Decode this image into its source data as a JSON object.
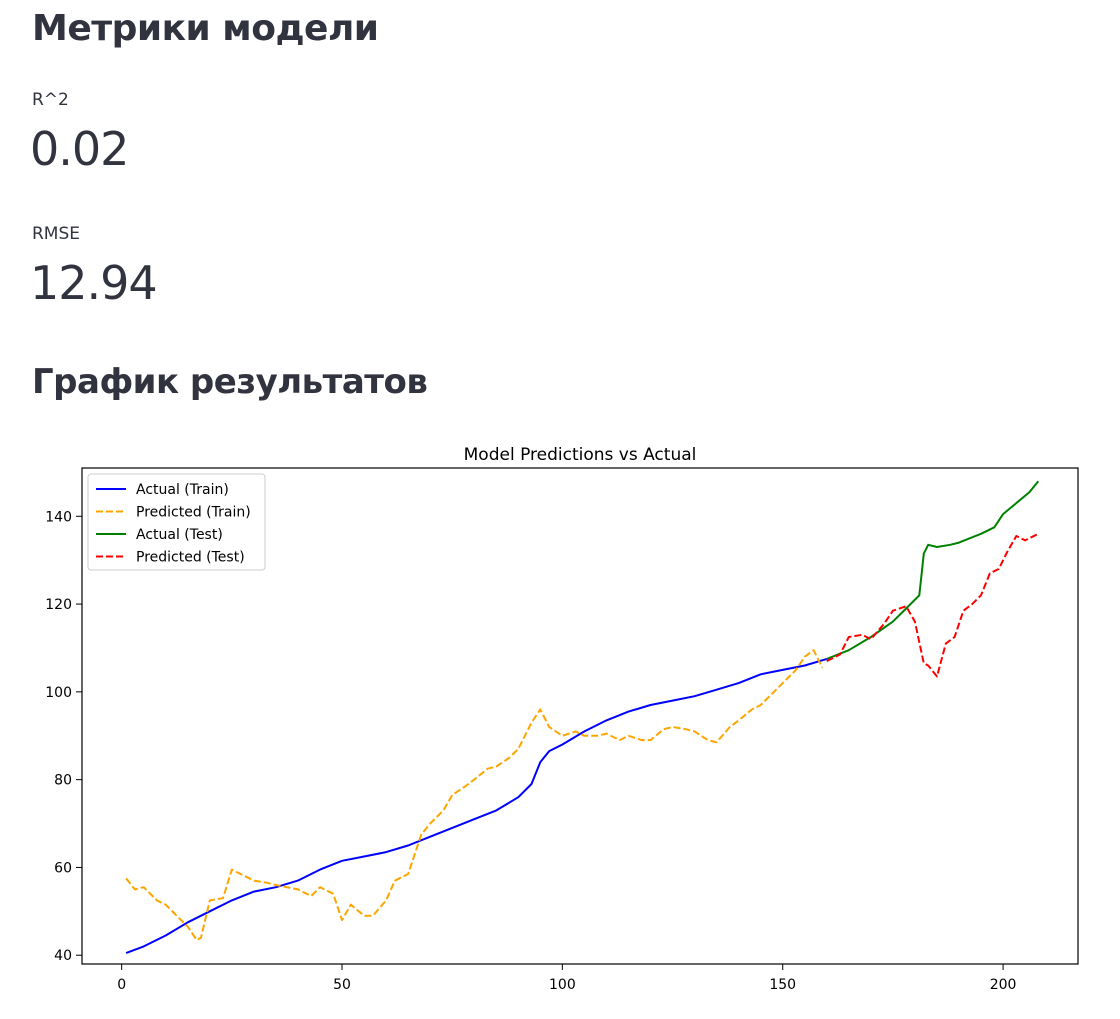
{
  "header": {
    "title": "Метрики модели"
  },
  "metrics": [
    {
      "label": "R^2",
      "value": "0.02"
    },
    {
      "label": "RMSE",
      "value": "12.94"
    }
  ],
  "results_section": {
    "title": "График результатов"
  },
  "chart_data": {
    "type": "line",
    "title": "Model Predictions vs Actual",
    "xlabel": "",
    "ylabel": "",
    "xlim": [
      -9,
      217
    ],
    "ylim": [
      38,
      151
    ],
    "xticks": [
      0,
      50,
      100,
      150,
      200
    ],
    "yticks": [
      40,
      60,
      80,
      100,
      120,
      140
    ],
    "legend_position": "top-left",
    "grid": false,
    "series": [
      {
        "name": "Actual (Train)",
        "color": "#0000ff",
        "style": "solid",
        "x": [
          1,
          5,
          10,
          15,
          20,
          25,
          30,
          35,
          40,
          45,
          50,
          55,
          60,
          65,
          70,
          75,
          80,
          85,
          90,
          93,
          95,
          97,
          100,
          105,
          110,
          115,
          120,
          125,
          130,
          135,
          140,
          145,
          150,
          155,
          160
        ],
        "y": [
          40.5,
          42,
          44.5,
          47.5,
          50,
          52.5,
          54.5,
          55.5,
          57,
          59.5,
          61.5,
          62.5,
          63.5,
          65,
          67,
          69,
          71,
          73,
          76,
          79,
          84,
          86.5,
          88,
          91,
          93.5,
          95.5,
          97,
          98,
          99,
          100.5,
          102,
          104,
          105,
          106,
          107.5
        ]
      },
      {
        "name": "Predicted (Train)",
        "color": "#ffa500",
        "style": "dashed",
        "x": [
          1,
          3,
          5,
          8,
          10,
          12,
          15,
          17,
          18,
          20,
          23,
          25,
          28,
          30,
          33,
          35,
          40,
          43,
          45,
          48,
          50,
          52,
          55,
          57,
          60,
          62,
          65,
          68,
          70,
          73,
          75,
          78,
          80,
          83,
          85,
          88,
          90,
          93,
          95,
          97,
          100,
          103,
          105,
          108,
          110,
          113,
          115,
          118,
          120,
          123,
          125,
          128,
          130,
          133,
          135,
          138,
          140,
          143,
          145,
          148,
          150,
          153,
          155,
          157,
          159
        ],
        "y": [
          57.5,
          55,
          55.5,
          52.5,
          51.5,
          49.5,
          46.5,
          43.5,
          44,
          52.5,
          53,
          59.5,
          58,
          57,
          56.5,
          56,
          55,
          53.5,
          55.5,
          54,
          48,
          51.5,
          49,
          49,
          52.5,
          57,
          58.5,
          67.5,
          70,
          73,
          76.5,
          78.5,
          80,
          82.5,
          83,
          85,
          87,
          93,
          96,
          92,
          90,
          91,
          90,
          90,
          90.5,
          89,
          90,
          89,
          89,
          91.5,
          92,
          91.5,
          91,
          89,
          88.5,
          92,
          93.5,
          96,
          97,
          100,
          102,
          105,
          108,
          109.5,
          105.5
        ]
      },
      {
        "name": "Actual (Test)",
        "color": "#008000",
        "style": "solid",
        "x": [
          160,
          165,
          170,
          175,
          178,
          181,
          182,
          183,
          185,
          188,
          190,
          195,
          198,
          200,
          203,
          206,
          208
        ],
        "y": [
          107.5,
          109.5,
          112.5,
          116,
          119,
          122,
          131.5,
          133.5,
          133,
          133.5,
          134,
          136,
          137.5,
          140.5,
          143,
          145.5,
          148
        ]
      },
      {
        "name": "Predicted (Test)",
        "color": "#ff0000",
        "style": "dashed",
        "x": [
          160,
          163,
          165,
          168,
          170,
          173,
          175,
          178,
          180,
          182,
          183,
          185,
          187,
          189,
          191,
          193,
          195,
          197,
          199,
          201,
          203,
          205,
          208
        ],
        "y": [
          107,
          108.5,
          112.5,
          113,
          112,
          115.5,
          118.5,
          119.5,
          116,
          106.5,
          106,
          103.5,
          111,
          112.5,
          118.5,
          120,
          122,
          127,
          128,
          132,
          135.5,
          134.5,
          136
        ]
      }
    ]
  }
}
